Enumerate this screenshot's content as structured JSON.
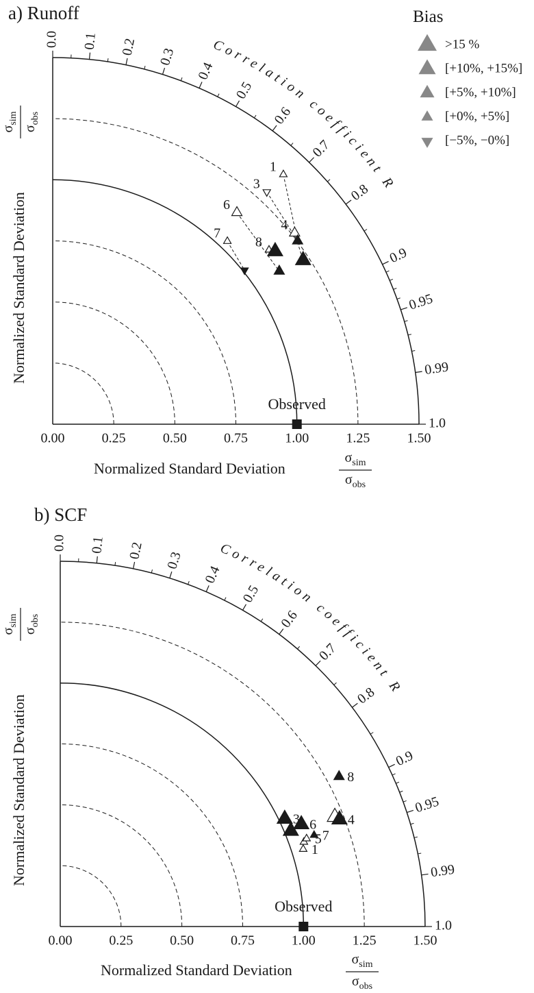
{
  "chart_data": [
    {
      "type": "taylor",
      "title": "a) Runoff",
      "axis_label": {
        "text": "Normalized Standard Deviation",
        "num": "σ",
        "num_sub": "sim",
        "den": "σ",
        "den_sub": "obs"
      },
      "corr_label": "Correlation coefficient R",
      "xlim": [
        0,
        1.5
      ],
      "xticks": [
        {
          "value": 0,
          "label": "0.00"
        },
        0.25,
        {
          "value": 0.5,
          "label": "0.50"
        },
        0.75,
        {
          "value": 1,
          "label": "1.00"
        },
        1.25,
        {
          "value": 1.5,
          "label": "1.50"
        }
      ],
      "reference_std": 1,
      "grid": true,
      "corr_ticks": [
        {
          "value": 0,
          "label": "0.0"
        },
        0.1,
        0.2,
        0.3,
        0.4,
        0.5,
        0.6,
        0.7,
        0.8,
        0.9,
        0.95,
        0.99,
        {
          "value": 1,
          "label": "1.0"
        }
      ],
      "corr_minor_ticks": [
        0.05,
        0.15,
        0.25,
        0.35,
        0.45,
        0.55,
        0.65,
        0.75,
        0.85,
        0.91,
        0.92,
        0.93,
        0.94,
        0.96,
        0.97,
        0.98
      ],
      "observed": {
        "label": "Observed",
        "std": 1,
        "corr": 1
      },
      "legend": {
        "title": "Bias",
        "color": "#888888",
        "entries": [
          ">15 %",
          "[+10%, +15%]",
          "[+5%, +10%]",
          "[+0%, +5%]",
          "[−5%, −0%]"
        ]
      },
      "label_side": "left",
      "points": [
        {
          "std": 1.252,
          "corr": 0.801,
          "bias": 2,
          "filled": true
        },
        {
          "std": 1.225,
          "corr": 0.837,
          "bias": 0,
          "filled": true
        },
        {
          "std": 1.119,
          "corr": 0.829,
          "bias": 2,
          "filled": true
        },
        {
          "std": 1.007,
          "corr": 0.78,
          "bias": 4,
          "filled": true
        },
        {
          "std": 1.153,
          "corr": 0.79,
          "bias": 0,
          "filled": true
        },
        {
          "label": "1",
          "std": 1.391,
          "corr": 0.679,
          "bias": 3,
          "filled": false,
          "to": 0
        },
        {
          "label": "3",
          "std": 1.293,
          "corr": 0.678,
          "bias": 4,
          "filled": false,
          "to": 0
        },
        {
          "label": "4",
          "std": 1.262,
          "corr": 0.785,
          "bias": 2,
          "filled": false,
          "to": 1
        },
        {
          "label": "6",
          "std": 1.148,
          "corr": 0.657,
          "bias": 2,
          "filled": false,
          "to": 2
        },
        {
          "label": "7",
          "std": 1.035,
          "corr": 0.691,
          "bias": 3,
          "filled": false,
          "to": 3
        },
        {
          "label": "8",
          "std": 1.137,
          "corr": 0.779,
          "bias": 3,
          "filled": false,
          "to": 4
        }
      ]
    },
    {
      "type": "taylor",
      "title": "b) SCF",
      "axis_label": {
        "text": "Normalized Standard Deviation",
        "num": "σ",
        "num_sub": "sim",
        "den": "σ",
        "den_sub": "obs"
      },
      "corr_label": "Correlation coefficient R",
      "xlim": [
        0,
        1.5
      ],
      "xticks": [
        {
          "value": 0,
          "label": "0.00"
        },
        0.25,
        {
          "value": 0.5,
          "label": "0.50"
        },
        0.75,
        {
          "value": 1,
          "label": "1.00"
        },
        1.25,
        {
          "value": 1.5,
          "label": "1.50"
        }
      ],
      "reference_std": 1,
      "grid": true,
      "corr_ticks": [
        {
          "value": 0,
          "label": "0.0"
        },
        0.1,
        0.2,
        0.3,
        0.4,
        0.5,
        0.6,
        0.7,
        0.8,
        0.9,
        0.95,
        0.99,
        {
          "value": 1,
          "label": "1.0"
        }
      ],
      "corr_minor_ticks": [
        0.05,
        0.15,
        0.25,
        0.35,
        0.45,
        0.55,
        0.65,
        0.75,
        0.85,
        0.91,
        0.92,
        0.93,
        0.94,
        0.96,
        0.97,
        0.98
      ],
      "observed": {
        "label": "Observed",
        "std": 1,
        "corr": 1
      },
      "label_side": "right",
      "points": [
        {
          "label": "8",
          "std": 1.301,
          "corr": 0.881,
          "bias": 2,
          "filled": true
        },
        {
          "std": 1.215,
          "corr": 0.929,
          "bias": 0,
          "filled": false
        },
        {
          "label": "4",
          "std": 1.229,
          "corr": 0.934,
          "bias": 0,
          "filled": true
        },
        {
          "std": 1.06,
          "corr": 0.945,
          "bias": 3,
          "filled": false
        },
        {
          "label": "3",
          "std": 1.023,
          "corr": 0.902,
          "bias": 0,
          "filled": true
        },
        {
          "label": "6",
          "std": 1.076,
          "corr": 0.921,
          "bias": 0,
          "filled": true
        },
        {
          "std": 1.026,
          "corr": 0.924,
          "bias": 0,
          "filled": true
        },
        {
          "label": "7",
          "std": 1.109,
          "corr": 0.941,
          "bias": 3,
          "filled": true
        },
        {
          "label": "5",
          "std": 1.075,
          "corr": 0.942,
          "bias": 3,
          "filled": false
        },
        {
          "label": "1",
          "std": 1.048,
          "corr": 0.953,
          "bias": 3,
          "filled": false
        }
      ]
    }
  ]
}
